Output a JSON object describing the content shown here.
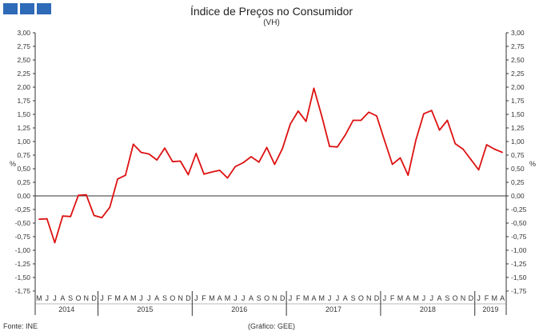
{
  "title": "Índice de Preços no Consumidor",
  "subtitle": "(VH)",
  "source": "Fonte: INE",
  "credit": "(Gráfico: GEE)",
  "colors": {
    "line": "#dd1111",
    "logo": "#2e6ab8"
  },
  "chart_data": {
    "type": "line",
    "ylabel_left": "%",
    "ylabel_right": "%",
    "ylim": [
      -1.75,
      3.0
    ],
    "yticks": [
      "3,00",
      "2,75",
      "2,50",
      "2,25",
      "2,00",
      "1,75",
      "1,50",
      "1,25",
      "1,00",
      "0,75",
      "0,50",
      "0,25",
      "0,00",
      "-0,25",
      "-0,50",
      "-0,75",
      "-1,00",
      "-1,25",
      "-1,50",
      "-1,75"
    ],
    "month_labels": [
      "M",
      "J",
      "J",
      "A",
      "S",
      "O",
      "N",
      "D",
      "J",
      "F",
      "M",
      "A",
      "M",
      "J",
      "J",
      "A",
      "S",
      "O",
      "N",
      "D",
      "J",
      "F",
      "M",
      "A",
      "M",
      "J",
      "J",
      "A",
      "S",
      "O",
      "N",
      "D",
      "J",
      "F",
      "M",
      "A",
      "M",
      "J",
      "J",
      "A",
      "S",
      "O",
      "N",
      "D",
      "J",
      "F",
      "M",
      "A",
      "M",
      "J",
      "J",
      "A",
      "S",
      "O",
      "N",
      "D",
      "J",
      "F",
      "M",
      "A"
    ],
    "year_labels": [
      "2014",
      "2015",
      "2016",
      "2017",
      "2018",
      "2019"
    ],
    "year_spans": [
      8,
      12,
      12,
      12,
      12,
      4
    ],
    "series": [
      {
        "values": [
          -0.43,
          -0.42,
          -0.86,
          -0.37,
          -0.38,
          0.01,
          0.02,
          -0.36,
          -0.4,
          -0.21,
          0.31,
          0.38,
          0.95,
          0.8,
          0.77,
          0.66,
          0.88,
          0.63,
          0.64,
          0.39,
          0.78,
          0.4,
          0.44,
          0.47,
          0.33,
          0.54,
          0.61,
          0.72,
          0.62,
          0.89,
          0.58,
          0.87,
          1.32,
          1.56,
          1.37,
          1.98,
          1.47,
          0.91,
          0.9,
          1.12,
          1.39,
          1.39,
          1.54,
          1.47,
          1.02,
          0.58,
          0.7,
          0.38,
          1.03,
          1.51,
          1.57,
          1.21,
          1.39,
          0.96,
          0.86,
          0.67,
          0.48,
          0.94,
          0.86,
          0.8
        ]
      }
    ]
  }
}
